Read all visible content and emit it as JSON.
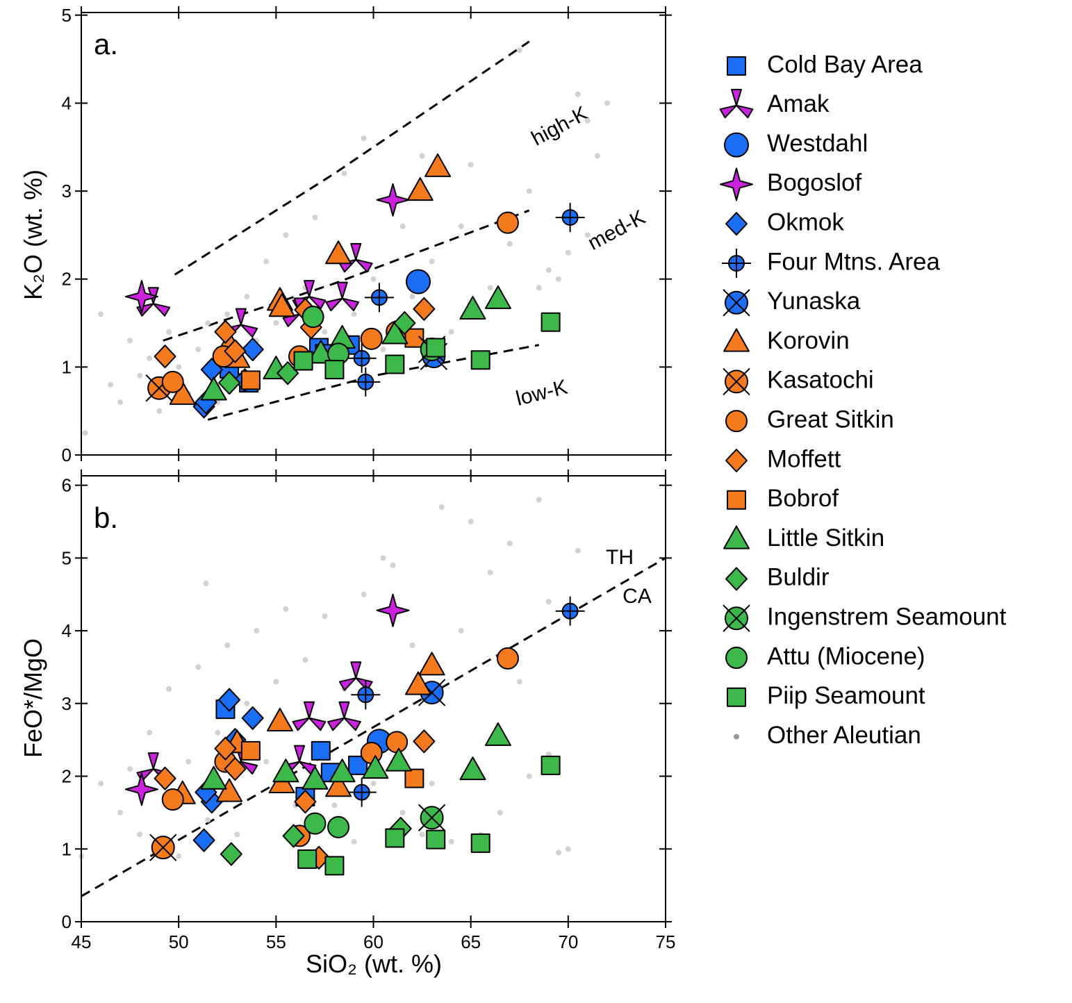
{
  "chart_data": {
    "type": "scatter",
    "xlabel": "SiO₂ (wt. %)",
    "xlim": [
      45,
      75
    ],
    "xticks": [
      45,
      50,
      55,
      60,
      65,
      70,
      75
    ],
    "series": [
      {
        "name": "Cold Bay Area",
        "color": "#1a6ef5",
        "marker": "square"
      },
      {
        "name": "Amak",
        "color": "#cc22e0",
        "marker": "tristar"
      },
      {
        "name": "Westdahl",
        "color": "#1a6ef5",
        "marker": "circle-large"
      },
      {
        "name": "Bogoslof",
        "color": "#cc22e0",
        "marker": "star4"
      },
      {
        "name": "Okmok",
        "color": "#1a6ef5",
        "marker": "diamond"
      },
      {
        "name": "Four Mtns. Area",
        "color": "#1a6ef5",
        "marker": "circle-plus"
      },
      {
        "name": "Yunaska",
        "color": "#1a6ef5",
        "marker": "circle-x"
      },
      {
        "name": "Korovin",
        "color": "#f57a1e",
        "marker": "triangle"
      },
      {
        "name": "Kasatochi",
        "color": "#f57a1e",
        "marker": "circle-x"
      },
      {
        "name": "Great Sitkin",
        "color": "#f57a1e",
        "marker": "circle"
      },
      {
        "name": "Moffett",
        "color": "#f57a1e",
        "marker": "diamond"
      },
      {
        "name": "Bobrof",
        "color": "#f57a1e",
        "marker": "square"
      },
      {
        "name": "Little Sitkin",
        "color": "#3cb94a",
        "marker": "triangle"
      },
      {
        "name": "Buldir",
        "color": "#3cb94a",
        "marker": "diamond"
      },
      {
        "name": "Ingenstrem Seamount",
        "color": "#3cb94a",
        "marker": "circle-x"
      },
      {
        "name": "Attu (Miocene)",
        "color": "#3cb94a",
        "marker": "circle"
      },
      {
        "name": "Piip Seamount",
        "color": "#3cb94a",
        "marker": "square"
      },
      {
        "name": "Other Aleutian",
        "color": "#d2d2d2",
        "marker": "dot"
      }
    ],
    "panels": [
      {
        "label": "a.",
        "ylabel": "K₂O (wt. %)",
        "ylim": [
          0,
          5.03
        ],
        "yticks": [
          0,
          1,
          2,
          3,
          4,
          5
        ],
        "annotations": [
          "high-K",
          "med-K",
          "low-K"
        ],
        "lines": [
          {
            "x": [
              49.8,
              58,
              68
            ],
            "y": [
              2.05,
              3.2,
              4.7
            ]
          },
          {
            "x": [
              49.2,
              58,
              68
            ],
            "y": [
              1.3,
              1.95,
              2.78
            ]
          },
          {
            "x": [
              51.5,
              60,
              68.5
            ],
            "y": [
              0.4,
              0.9,
              1.25
            ]
          }
        ],
        "points": [
          {
            "x": [
              52.6,
              57.2,
              58.8,
              57.5,
              53.6
            ],
            "y": [
              0.98,
              1.22,
              1.25,
              1.15,
              0.82
            ]
          },
          {
            "x": [
              48.7,
              53.2,
              56.7,
              58.4,
              59.1,
              56.2
            ],
            "y": [
              1.72,
              1.48,
              1.8,
              1.78,
              2.22,
              1.6
            ]
          },
          {
            "x": [
              62.3
            ],
            "y": [
              1.97
            ]
          },
          {
            "x": [
              48.1,
              61
            ],
            "y": [
              1.8,
              2.9
            ]
          },
          {
            "x": [
              51.3,
              51.7,
              53.4,
              53.8,
              51.4
            ],
            "y": [
              0.55,
              0.97,
              0.85,
              1.2,
              0.6
            ]
          },
          {
            "x": [
              70.1,
              60.3,
              59.4,
              59.6
            ],
            "y": [
              2.7,
              1.79,
              1.1,
              0.83
            ]
          },
          {
            "x": [
              63.1
            ],
            "y": [
              1.12
            ]
          },
          {
            "x": [
              50.2,
              55.2,
              55.3,
              58.2,
              62.4,
              63.3,
              52.6,
              53.0
            ],
            "y": [
              0.68,
              1.75,
              1.68,
              2.28,
              3.0,
              3.27,
              1.25,
              1.1
            ]
          },
          {
            "x": [
              49
            ],
            "y": [
              0.76
            ]
          },
          {
            "x": [
              49.7,
              52.3,
              56.2,
              59.9,
              61.2,
              66.9
            ],
            "y": [
              0.83,
              1.12,
              1.12,
              1.32,
              1.4,
              2.64
            ]
          },
          {
            "x": [
              49.3,
              52.4,
              52.9,
              56.5,
              56.8,
              62.6
            ],
            "y": [
              1.12,
              1.4,
              1.18,
              1.65,
              1.45,
              1.66
            ]
          },
          {
            "x": [
              53.7,
              62.1
            ],
            "y": [
              0.85,
              1.33
            ]
          },
          {
            "x": [
              51.8,
              55,
              57.3,
              58.4,
              61.1,
              65.1,
              66.4
            ],
            "y": [
              0.73,
              0.97,
              1.15,
              1.32,
              1.37,
              1.65,
              1.77
            ]
          },
          {
            "x": [
              52.6,
              55.6,
              61.6
            ],
            "y": [
              0.82,
              0.93,
              1.5
            ]
          },
          {
            "x": [
              63
            ],
            "y": [
              1.2
            ]
          },
          {
            "x": [
              56.9,
              58.2
            ],
            "y": [
              1.57,
              1.15
            ]
          },
          {
            "x": [
              56.4,
              58,
              61.1,
              63.2,
              65.5,
              69.1
            ],
            "y": [
              1.07,
              0.97,
              1.03,
              1.22,
              1.08,
              1.51
            ]
          },
          {
            "x": [
              45.2,
              46,
              46.5,
              47,
              47.5,
              48,
              48.5,
              49,
              49.5,
              50,
              50.5,
              51,
              51.5,
              52,
              52.5,
              53,
              53.5,
              54,
              54.5,
              55,
              55.5,
              56,
              56.5,
              57,
              57.5,
              58,
              58.5,
              59,
              59.5,
              60,
              60.5,
              61,
              61.5,
              62,
              62.5,
              63,
              64,
              64.5,
              65,
              66,
              67,
              67.5,
              68,
              68.5,
              69,
              70,
              70.5,
              71,
              71.5,
              72,
              71,
              69.5
            ],
            "y": [
              0.25,
              1.6,
              0.8,
              0.6,
              1.3,
              0.9,
              1.1,
              0.5,
              1.4,
              1.0,
              0.7,
              1.2,
              1.5,
              0.6,
              1.6,
              1.0,
              1.8,
              1.3,
              2.2,
              1.5,
              2.5,
              1.2,
              1.9,
              2.7,
              1.4,
              2.3,
              3.2,
              1.6,
              3.6,
              2.0,
              1.2,
              3.0,
              2.6,
              1.8,
              3.4,
              2.2,
              1.4,
              2.6,
              3.3,
              1.9,
              2.4,
              4.6,
              3.0,
              1.9,
              2.1,
              2.3,
              4.1,
              3.8,
              3.4,
              4.0,
              2.5,
              2.0
            ]
          }
        ]
      },
      {
        "label": "b.",
        "ylabel": "FeO*/MgO",
        "ylim": [
          0,
          6.13
        ],
        "yticks": [
          0,
          1,
          2,
          3,
          4,
          5,
          6
        ],
        "annotations": [
          "TH",
          "CA"
        ],
        "lines": [
          {
            "x": [
              45,
              75
            ],
            "y": [
              0.35,
              5.0
            ]
          }
        ],
        "points": [
          {
            "x": [
              52.4,
              57.3,
              57.8,
              59.2,
              56.5
            ],
            "y": [
              2.92,
              2.35,
              2.05,
              2.15,
              1.72
            ]
          },
          {
            "x": [
              48.7,
              56.7,
              58.5,
              59.1,
              56.2,
              53.2
            ],
            "y": [
              2.1,
              2.8,
              2.8,
              3.35,
              2.2,
              2.2
            ]
          },
          {
            "x": [
              60.3
            ],
            "y": [
              2.48
            ]
          },
          {
            "x": [
              48.1,
              61
            ],
            "y": [
              1.82,
              4.28
            ]
          },
          {
            "x": [
              51.3,
              51.7,
              52.6,
              53.8,
              52.9,
              51.4
            ],
            "y": [
              1.12,
              1.65,
              3.05,
              2.8,
              2.5,
              1.78
            ]
          },
          {
            "x": [
              70.1,
              59.6,
              59.4
            ],
            "y": [
              4.27,
              3.12,
              1.78
            ]
          },
          {
            "x": [
              63
            ],
            "y": [
              3.15
            ]
          },
          {
            "x": [
              50.2,
              52.6,
              55.2,
              55.3,
              58.2,
              62.3,
              63,
              53
            ],
            "y": [
              1.75,
              1.78,
              2.75,
              1.9,
              1.85,
              3.25,
              3.52,
              2.45
            ]
          },
          {
            "x": [
              49.2
            ],
            "y": [
              1.02
            ]
          },
          {
            "x": [
              49.7,
              52.4,
              56.2,
              59.9,
              61.2,
              66.9
            ],
            "y": [
              1.68,
              2.2,
              1.18,
              2.32,
              2.47,
              3.62
            ]
          },
          {
            "x": [
              49.3,
              52.4,
              52.9,
              56.5,
              57.2,
              62.6
            ],
            "y": [
              1.97,
              2.38,
              2.1,
              1.65,
              0.88,
              2.48
            ]
          },
          {
            "x": [
              53.7,
              62.1
            ],
            "y": [
              2.35,
              1.97
            ]
          },
          {
            "x": [
              51.8,
              55.5,
              57,
              58.4,
              60.1,
              61.3,
              65.1,
              66.4
            ],
            "y": [
              1.95,
              2.05,
              1.95,
              2.05,
              2.1,
              2.2,
              2.08,
              2.55
            ]
          },
          {
            "x": [
              52.7,
              55.9,
              61.4
            ],
            "y": [
              0.93,
              1.18,
              1.28
            ]
          },
          {
            "x": [
              63
            ],
            "y": [
              1.43
            ]
          },
          {
            "x": [
              57,
              58.2
            ],
            "y": [
              1.35,
              1.3
            ]
          },
          {
            "x": [
              56.6,
              58,
              61.1,
              63.2,
              65.5,
              69.1
            ],
            "y": [
              0.86,
              0.77,
              1.15,
              1.13,
              1.08,
              2.15
            ]
          },
          {
            "x": [
              45,
              46,
              47,
              47.5,
              48,
              48.5,
              49.5,
              50,
              50.5,
              51,
              51.4,
              51.5,
              52,
              52.5,
              53,
              53.5,
              54,
              54.5,
              55,
              55.5,
              56,
              56.5,
              57,
              57.5,
              58,
              58.5,
              59,
              59.5,
              60,
              60.5,
              61,
              61.5,
              62,
              62.5,
              63,
              63.5,
              64,
              64.5,
              65,
              65.5,
              66,
              66.5,
              67,
              67.5,
              68,
              68.5,
              69,
              69.5,
              70,
              70.5,
              69
            ],
            "y": [
              0.9,
              1.9,
              1.5,
              2.1,
              1.2,
              2.6,
              3.2,
              0.9,
              2.2,
              3.5,
              4.65,
              1.4,
              2.6,
              3.8,
              1.2,
              3.0,
              4.0,
              2.2,
              3.3,
              4.3,
              1.6,
              3.6,
              2.4,
              4.2,
              1.6,
              3.2,
              1.1,
              4.5,
              1.9,
              5.0,
              4.9,
              1.5,
              3.8,
              1.2,
              1.9,
              5.7,
              1.1,
              4.0,
              5.5,
              1.2,
              4.8,
              1.5,
              5.2,
              3.3,
              2.0,
              5.8,
              4.4,
              0.95,
              1.0,
              5.1,
              2.3
            ]
          }
        ]
      }
    ]
  }
}
